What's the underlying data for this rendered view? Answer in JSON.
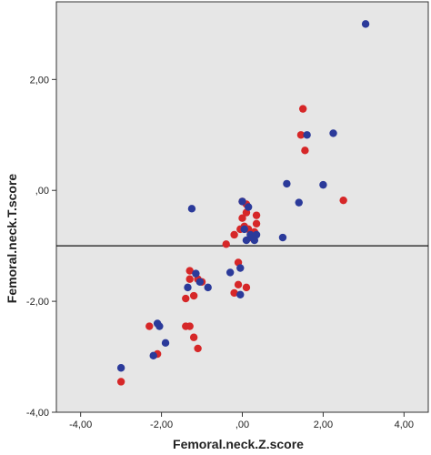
{
  "chart_data": {
    "type": "scatter",
    "xlabel": "Femoral.neck.Z.score",
    "ylabel": "Femoral.neck.T.score",
    "xlim": [
      -4.6,
      4.6
    ],
    "ylim": [
      -4.0,
      3.4
    ],
    "x_ticks": [
      -4,
      -2,
      0,
      2,
      4
    ],
    "x_tick_labels": [
      "-4,00",
      "-2,00",
      ",00",
      "2,00",
      "4,00"
    ],
    "y_ticks": [
      -4,
      -2,
      0,
      2
    ],
    "y_tick_labels": [
      "-4,00",
      "-2,00",
      ",00",
      "2,00"
    ],
    "reference_line_y": -1.0,
    "grid": false,
    "background_color": "#e6e6e6",
    "series": [
      {
        "color": "#d62728",
        "points": [
          [
            -3.0,
            -3.45
          ],
          [
            -2.3,
            -2.45
          ],
          [
            -2.1,
            -2.95
          ],
          [
            -1.4,
            -2.45
          ],
          [
            -1.3,
            -2.45
          ],
          [
            -1.2,
            -2.65
          ],
          [
            -1.1,
            -2.85
          ],
          [
            -1.4,
            -1.95
          ],
          [
            -1.3,
            -1.45
          ],
          [
            -1.2,
            -1.9
          ],
          [
            -1.1,
            -1.6
          ],
          [
            -1.0,
            -1.65
          ],
          [
            -1.3,
            -1.6
          ],
          [
            -0.4,
            -0.97
          ],
          [
            -0.2,
            -0.8
          ],
          [
            -0.1,
            -1.3
          ],
          [
            -0.2,
            -1.85
          ],
          [
            -0.1,
            -1.7
          ],
          [
            0.1,
            -1.75
          ],
          [
            0.0,
            -0.2
          ],
          [
            0.1,
            -0.25
          ],
          [
            0.1,
            -0.4
          ],
          [
            0.0,
            -0.5
          ],
          [
            0.05,
            -0.65
          ],
          [
            0.15,
            -0.7
          ],
          [
            0.2,
            -0.85
          ],
          [
            0.3,
            -0.75
          ],
          [
            0.35,
            -0.6
          ],
          [
            0.35,
            -0.45
          ],
          [
            -0.05,
            -0.7
          ],
          [
            1.45,
            1.0
          ],
          [
            1.5,
            1.47
          ],
          [
            1.55,
            0.72
          ],
          [
            2.5,
            -0.18
          ]
        ]
      },
      {
        "color": "#2b3a9a",
        "points": [
          [
            -3.0,
            -3.2
          ],
          [
            -2.1,
            -2.4
          ],
          [
            -2.2,
            -2.98
          ],
          [
            -2.05,
            -2.45
          ],
          [
            -1.9,
            -2.75
          ],
          [
            -1.25,
            -0.33
          ],
          [
            -1.35,
            -1.75
          ],
          [
            -1.15,
            -1.5
          ],
          [
            -1.05,
            -1.65
          ],
          [
            -0.85,
            -1.75
          ],
          [
            -0.3,
            -1.48
          ],
          [
            -0.05,
            -1.4
          ],
          [
            -0.05,
            -1.88
          ],
          [
            0.0,
            -0.2
          ],
          [
            0.05,
            -0.7
          ],
          [
            0.1,
            -0.9
          ],
          [
            0.15,
            -0.3
          ],
          [
            0.2,
            -0.8
          ],
          [
            0.25,
            -0.85
          ],
          [
            0.3,
            -0.9
          ],
          [
            0.35,
            -0.8
          ],
          [
            1.0,
            -0.85
          ],
          [
            1.1,
            0.12
          ],
          [
            1.4,
            -0.22
          ],
          [
            1.6,
            1.0
          ],
          [
            2.0,
            0.1
          ],
          [
            2.25,
            1.03
          ],
          [
            3.05,
            3.0
          ]
        ]
      }
    ]
  }
}
